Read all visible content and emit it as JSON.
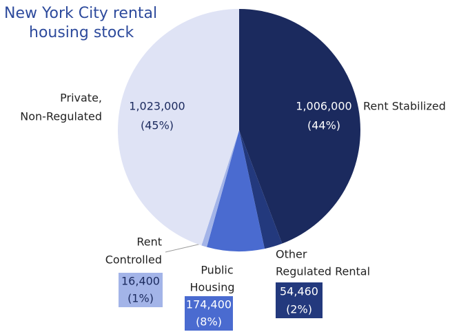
{
  "chart_data": {
    "type": "pie",
    "title": [
      "New York City rental",
      "housing stock"
    ],
    "categories": [
      [
        "Rent Stabilized"
      ],
      [
        "Other",
        "Regulated Rental"
      ],
      [
        "Public",
        "Housing"
      ],
      [
        "Rent",
        "Controlled"
      ],
      [
        "Private,",
        "Non-Regulated"
      ]
    ],
    "values": [
      1006000,
      54460,
      174400,
      16400,
      1023000
    ],
    "value_labels": [
      "1,006,000",
      "54,460",
      "174,400",
      "16,400",
      "1,023,000"
    ],
    "percents": [
      44,
      2,
      8,
      1,
      45
    ],
    "percent_labels": [
      "(44%)",
      "(2%)",
      "(8%)",
      "(1%)",
      "(45%)"
    ],
    "colors": [
      "#1b2a5e",
      "#23397d",
      "#4a6bd0",
      "#a3b4e8",
      "#dfe3f5"
    ]
  }
}
